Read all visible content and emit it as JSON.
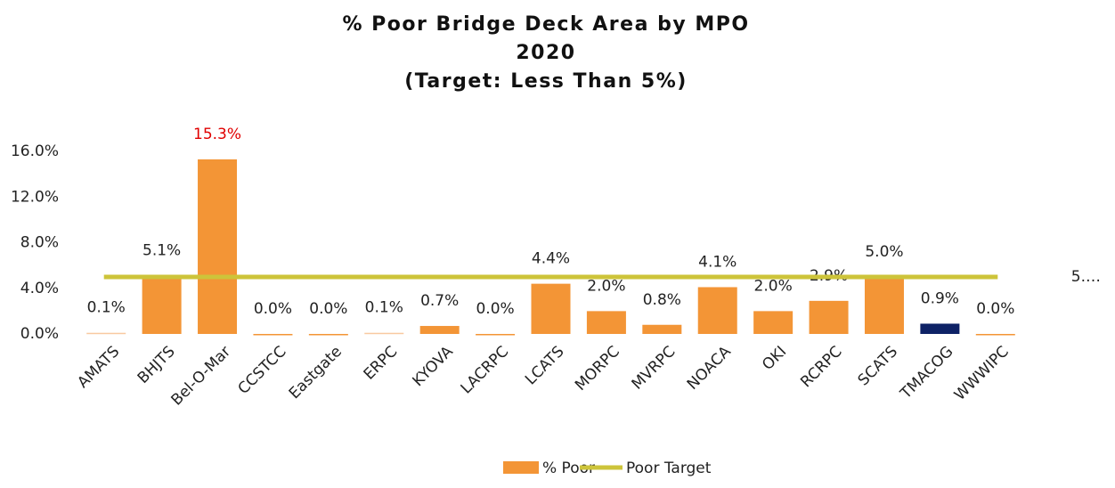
{
  "chart_data": {
    "type": "bar",
    "title": [
      "% Poor Bridge Deck Area by MPO",
      "2020",
      "(Target: Less Than 5%)"
    ],
    "categories": [
      "AMATS",
      "BHJTS",
      "Bel-O-Mar",
      "CCSTCC",
      "Eastgate",
      "ERPC",
      "KYOVA",
      "LACRPC",
      "LCATS",
      "MORPC",
      "MVRPC",
      "NOACA",
      "OKI",
      "RCRPC",
      "SCATS",
      "TMACOG",
      "WWWIPC"
    ],
    "series": [
      {
        "name": "% Poor",
        "type": "bar",
        "color": "#f39536",
        "colors": [
          "#f8c9a0",
          "#f39536",
          "#f39536",
          "#f39536",
          "#f39536",
          "#f8c9a0",
          "#f39536",
          "#f39536",
          "#f39536",
          "#f39536",
          "#f39536",
          "#f39536",
          "#f39536",
          "#f39536",
          "#f39536",
          "#0e2266",
          "#f39536"
        ],
        "values": [
          0.1,
          5.1,
          15.3,
          0.0,
          0.0,
          0.1,
          0.7,
          0.0,
          4.4,
          2.0,
          0.8,
          4.1,
          2.0,
          2.9,
          5.0,
          0.9,
          0.0
        ],
        "value_labels": [
          "0.1%",
          "5.1%",
          "15.3%",
          "0.0%",
          "0.0%",
          "0.1%",
          "0.7%",
          "0.0%",
          "4.4%",
          "2.0%",
          "0.8%",
          "4.1%",
          "2.0%",
          "2.9%",
          "5.0%",
          "0.9%",
          "0.0%"
        ],
        "value_label_colors": [
          "#222",
          "#222",
          "#e00000",
          "#222",
          "#222",
          "#222",
          "#222",
          "#222",
          "#222",
          "#222",
          "#222",
          "#222",
          "#222",
          "#222",
          "#222",
          "#222",
          "#222"
        ]
      },
      {
        "name": "Poor Target",
        "type": "line",
        "color": "#cdc43a",
        "values": [
          5,
          5,
          5,
          5,
          5,
          5,
          5,
          5,
          5,
          5,
          5,
          5,
          5,
          5,
          5,
          5,
          5
        ],
        "end_label": "5.…"
      }
    ],
    "ylim": [
      0,
      16
    ],
    "yticks": [
      {
        "value": 0,
        "label": "0.0%"
      },
      {
        "value": 4,
        "label": "4.0%"
      },
      {
        "value": 8,
        "label": "8.0%"
      },
      {
        "value": 12,
        "label": "12.0%"
      },
      {
        "value": 16,
        "label": "16.0%"
      }
    ],
    "grid": false,
    "legend": "bottom"
  }
}
